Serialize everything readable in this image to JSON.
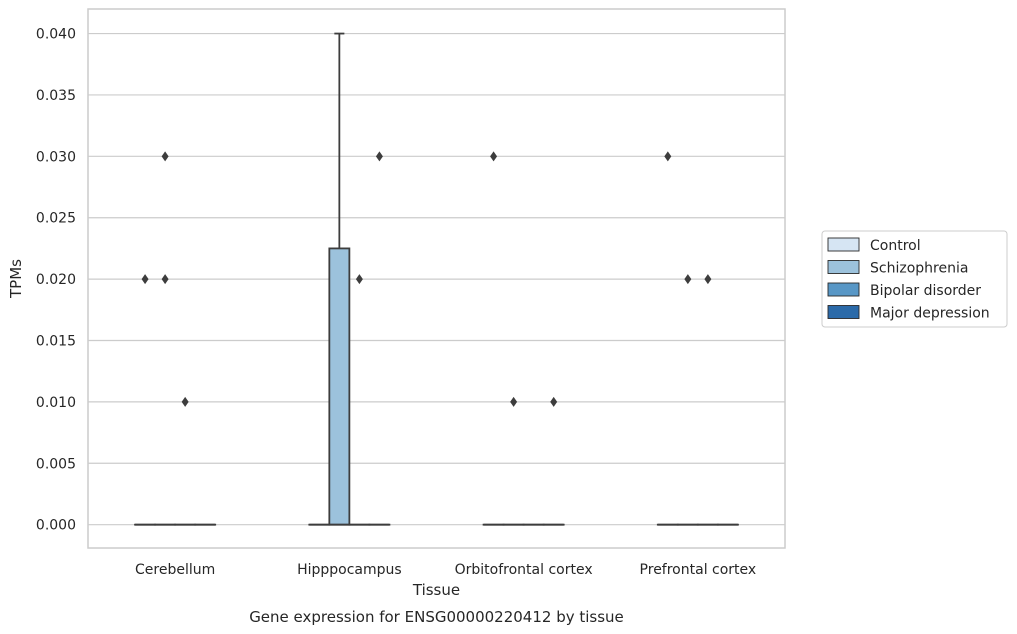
{
  "caption": "Gene expression for ENSG00000220412 by tissue",
  "chart_data": {
    "type": "box",
    "xlabel": "Tissue",
    "ylabel": "TPMs",
    "ylim": [
      -0.0019,
      0.042
    ],
    "yticks": [
      0.0,
      0.005,
      0.01,
      0.015,
      0.02,
      0.025,
      0.03,
      0.035,
      0.04
    ],
    "ytick_labels": [
      "0.000",
      "0.005",
      "0.010",
      "0.015",
      "0.020",
      "0.025",
      "0.030",
      "0.035",
      "0.040"
    ],
    "grid": "horizontal",
    "legend_position": "right",
    "categories": [
      "Cerebellum",
      "Hipppocampus",
      "Orbitofrontal cortex",
      "Prefrontal cortex"
    ],
    "series": [
      {
        "name": "Control",
        "color": "#d6e5f3",
        "boxes": [
          {
            "q1": 0,
            "median": 0,
            "q3": 0,
            "whisker_low": 0,
            "whisker_high": 0,
            "outliers": [
              0.02
            ]
          },
          {
            "q1": 0,
            "median": 0,
            "q3": 0,
            "whisker_low": 0,
            "whisker_high": 0,
            "outliers": []
          },
          {
            "q1": 0,
            "median": 0,
            "q3": 0,
            "whisker_low": 0,
            "whisker_high": 0,
            "outliers": [
              0.03
            ]
          },
          {
            "q1": 0,
            "median": 0,
            "q3": 0,
            "whisker_low": 0,
            "whisker_high": 0,
            "outliers": [
              0.03
            ]
          }
        ]
      },
      {
        "name": "Schizophrenia",
        "color": "#9cc2dc",
        "boxes": [
          {
            "q1": 0,
            "median": 0,
            "q3": 0,
            "whisker_low": 0,
            "whisker_high": 0,
            "outliers": [
              0.02,
              0.03
            ]
          },
          {
            "q1": 0,
            "median": 0,
            "q3": 0.0225,
            "whisker_low": 0,
            "whisker_high": 0.04,
            "outliers": []
          },
          {
            "q1": 0,
            "median": 0,
            "q3": 0,
            "whisker_low": 0,
            "whisker_high": 0,
            "outliers": [
              0.01
            ]
          },
          {
            "q1": 0,
            "median": 0,
            "q3": 0,
            "whisker_low": 0,
            "whisker_high": 0,
            "outliers": [
              0.02
            ]
          }
        ]
      },
      {
        "name": "Bipolar disorder",
        "color": "#5897c6",
        "boxes": [
          {
            "q1": 0,
            "median": 0,
            "q3": 0,
            "whisker_low": 0,
            "whisker_high": 0,
            "outliers": [
              0.01
            ]
          },
          {
            "q1": 0,
            "median": 0,
            "q3": 0,
            "whisker_low": 0,
            "whisker_high": 0,
            "outliers": [
              0.02
            ]
          },
          {
            "q1": 0,
            "median": 0,
            "q3": 0,
            "whisker_low": 0,
            "whisker_high": 0,
            "outliers": []
          },
          {
            "q1": 0,
            "median": 0,
            "q3": 0,
            "whisker_low": 0,
            "whisker_high": 0,
            "outliers": [
              0.02
            ]
          }
        ]
      },
      {
        "name": "Major depression",
        "color": "#2b6aa9",
        "boxes": [
          {
            "q1": 0,
            "median": 0,
            "q3": 0,
            "whisker_low": 0,
            "whisker_high": 0,
            "outliers": []
          },
          {
            "q1": 0,
            "median": 0,
            "q3": 0,
            "whisker_low": 0,
            "whisker_high": 0,
            "outliers": [
              0.03
            ]
          },
          {
            "q1": 0,
            "median": 0,
            "q3": 0,
            "whisker_low": 0,
            "whisker_high": 0,
            "outliers": [
              0.01
            ]
          },
          {
            "q1": 0,
            "median": 0,
            "q3": 0,
            "whisker_low": 0,
            "whisker_high": 0,
            "outliers": []
          }
        ]
      }
    ]
  }
}
